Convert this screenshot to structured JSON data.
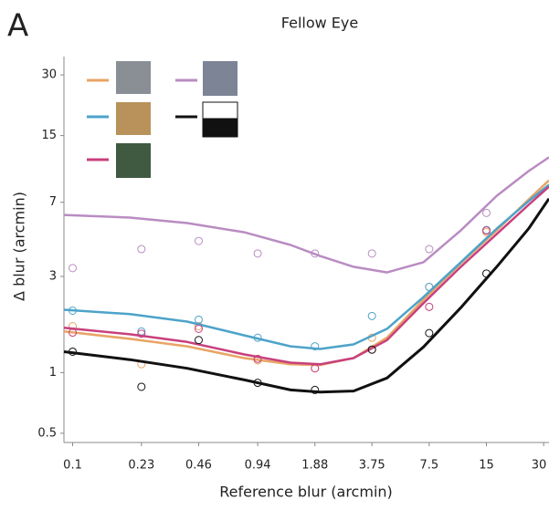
{
  "chart_data": {
    "type": "scatter_fit",
    "panel_label": "A",
    "title": "Fellow Eye",
    "xlabel": "Reference blur (arcmin)",
    "ylabel": "Δ blur (arcmin)",
    "xscale": "log",
    "yscale": "log",
    "xlim": [
      0.09,
      32
    ],
    "ylim": [
      0.45,
      37
    ],
    "xticks": [
      0.1,
      0.23,
      0.46,
      0.94,
      1.88,
      3.75,
      7.5,
      15,
      30
    ],
    "yticks": [
      0.5,
      1,
      3,
      7,
      15,
      30
    ],
    "x": [
      0.1,
      0.23,
      0.46,
      0.94,
      1.88,
      3.75,
      7.5,
      15
    ],
    "fit_x": [
      0.09,
      0.2,
      0.4,
      0.8,
      1.4,
      2,
      3,
      4.5,
      7,
      11,
      17,
      25,
      32
    ],
    "series": [
      {
        "color": "#e8a464",
        "values": [
          1.7,
          1.1,
          1.7,
          1.15,
          1.05,
          1.49,
          2.66,
          4.98
        ],
        "fit": [
          1.6,
          1.47,
          1.35,
          1.18,
          1.1,
          1.09,
          1.18,
          1.49,
          2.3,
          3.49,
          5.08,
          7.23,
          9.0
        ]
      },
      {
        "color": "#4da3c9",
        "values": [
          2.03,
          1.6,
          1.83,
          1.49,
          1.35,
          1.91,
          2.66,
          5.1
        ],
        "fit": [
          2.05,
          1.95,
          1.79,
          1.53,
          1.35,
          1.31,
          1.38,
          1.65,
          2.37,
          3.53,
          5.18,
          7.1,
          8.55
        ]
      },
      {
        "color": "#c8407c",
        "values": [
          1.58,
          1.56,
          1.65,
          1.17,
          1.05,
          1.3,
          2.12,
          5.07
        ],
        "fit": [
          1.67,
          1.55,
          1.42,
          1.23,
          1.12,
          1.1,
          1.18,
          1.45,
          2.21,
          3.35,
          4.87,
          6.8,
          8.37
        ]
      },
      {
        "color": "#b98cc2",
        "values": [
          3.3,
          4.1,
          4.5,
          3.9,
          3.9,
          3.9,
          4.1,
          6.2
        ],
        "fit": [
          6.06,
          5.88,
          5.52,
          4.97,
          4.3,
          3.79,
          3.35,
          3.14,
          3.53,
          5.08,
          7.54,
          10.0,
          11.7
        ]
      },
      {
        "color": "#111111",
        "values": [
          1.27,
          0.85,
          1.45,
          0.89,
          0.82,
          1.3,
          1.57,
          3.1
        ],
        "fit": [
          1.27,
          1.16,
          1.05,
          0.92,
          0.82,
          0.8,
          0.81,
          0.94,
          1.34,
          2.1,
          3.35,
          5.18,
          7.3
        ]
      }
    ]
  }
}
